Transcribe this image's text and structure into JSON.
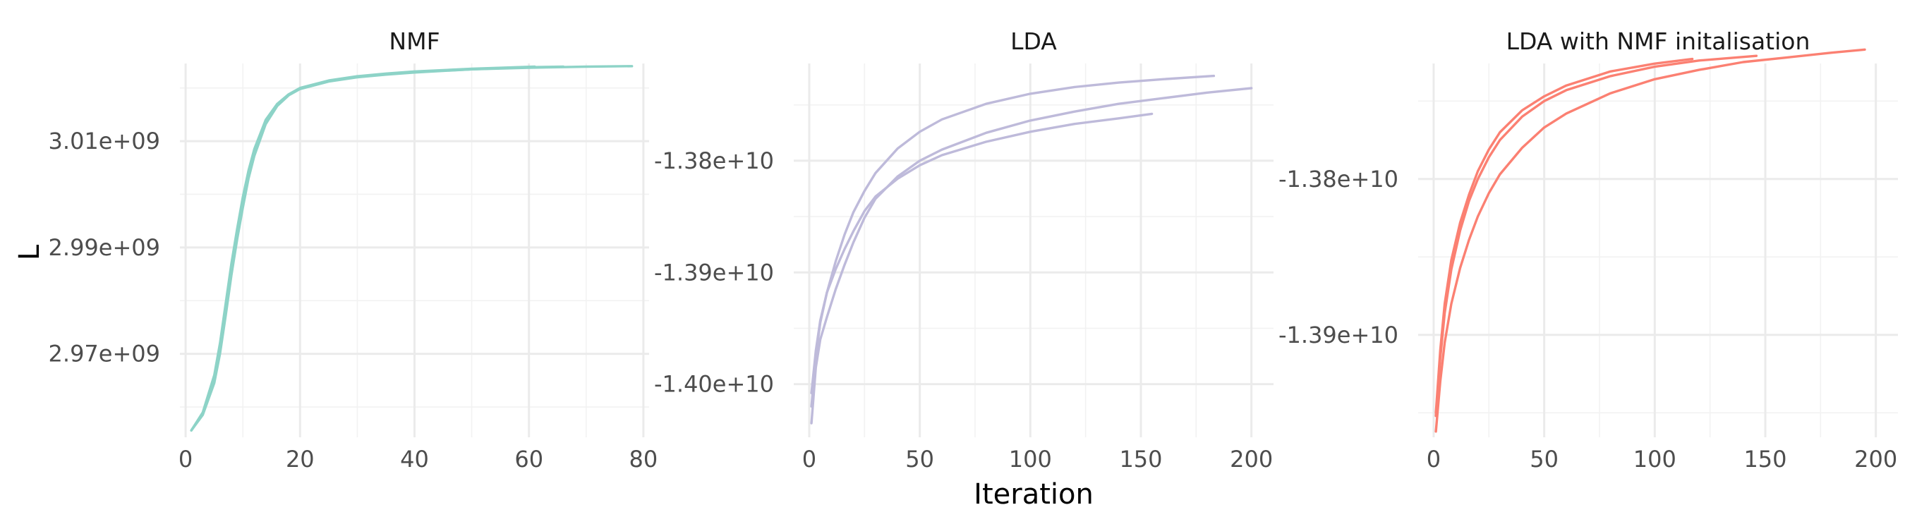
{
  "chart_data": [
    {
      "type": "line",
      "title": "NMF",
      "xlabel": "",
      "ylabel": "L",
      "xlim": [
        -1,
        81
      ],
      "ylim": [
        2954300000.0,
        3024600000.0
      ],
      "x_ticks": [
        0,
        20,
        40,
        60,
        80
      ],
      "x_tick_labels": [
        "0",
        "20",
        "40",
        "60",
        "80"
      ],
      "y_ticks": [
        2970000000.0,
        2990000000.0,
        3010000000.0
      ],
      "y_tick_labels": [
        "2.97e+09",
        "2.99e+09",
        "3.01e+09"
      ],
      "grid": true,
      "color": "#8dd3c7",
      "series": [
        {
          "x": [
            1,
            3,
            5,
            6,
            7,
            8,
            9,
            10,
            11,
            12,
            14,
            16,
            18,
            20,
            25,
            30,
            35,
            40,
            50,
            61
          ],
          "y": [
            2955600000.0,
            2959000000.0,
            2966000000.0,
            2972000000.0,
            2979500000.0,
            2987000000.0,
            2993500000.0,
            2999500000.0,
            3004500000.0,
            3008500000.0,
            3014000000.0,
            3017000000.0,
            3018800000.0,
            3020000000.0,
            3021400000.0,
            3022200000.0,
            3022700000.0,
            3023100000.0,
            3023600000.0,
            3024000000.0
          ]
        },
        {
          "x": [
            1,
            3,
            5,
            6,
            7,
            8,
            9,
            10,
            11,
            12,
            14,
            16,
            18,
            20,
            25,
            30,
            35,
            40,
            50,
            60,
            66
          ],
          "y": [
            2955600000.0,
            2958500000.0,
            2964500000.0,
            2970000000.0,
            2977200000.0,
            2984800000.0,
            2991500000.0,
            2997500000.0,
            3003000000.0,
            3007200000.0,
            3013200000.0,
            3016600000.0,
            3018600000.0,
            3019800000.0,
            3021200000.0,
            3022000000.0,
            3022500000.0,
            3022900000.0,
            3023500000.0,
            3023900000.0,
            3024000000.0
          ]
        },
        {
          "x": [
            1,
            3,
            5,
            6,
            7,
            8,
            9,
            10,
            11,
            12,
            14,
            16,
            18,
            20,
            25,
            30,
            35,
            40,
            50,
            60,
            70,
            78
          ],
          "y": [
            2955600000.0,
            2958800000.0,
            2965200000.0,
            2971000000.0,
            2978500000.0,
            2986000000.0,
            2992500000.0,
            2998500000.0,
            3003700000.0,
            3007800000.0,
            3013600000.0,
            3016800000.0,
            3018700000.0,
            3019900000.0,
            3021300000.0,
            3022100000.0,
            3022600000.0,
            3023000000.0,
            3023500000.0,
            3023800000.0,
            3024000000.0,
            3024100000.0
          ]
        }
      ]
    },
    {
      "type": "line",
      "title": "LDA",
      "xlabel": "Iteration",
      "ylabel": "",
      "xlim": [
        -7,
        210
      ],
      "ylim": [
        -14047600000.0,
        -13712900000.0
      ],
      "x_ticks": [
        0,
        50,
        100,
        150,
        200
      ],
      "x_tick_labels": [
        "0",
        "50",
        "100",
        "150",
        "200"
      ],
      "y_ticks": [
        -14000000000.0,
        -13900000000.0,
        -13800000000.0
      ],
      "y_tick_labels": [
        "-1.40e+10",
        "-1.39e+10",
        "-1.38e+10"
      ],
      "grid": true,
      "color": "#bebada",
      "series": [
        {
          "x": [
            1,
            3,
            5,
            8,
            12,
            16,
            20,
            25,
            30,
            40,
            50,
            60,
            80,
            100,
            120,
            140,
            160,
            183
          ],
          "y": [
            -14020000000.0,
            -13975000000.0,
            -13945000000.0,
            -13918000000.0,
            -13890000000.0,
            -13866000000.0,
            -13846000000.0,
            -13827000000.0,
            -13811000000.0,
            -13789000000.0,
            -13774000000.0,
            -13763000000.0,
            -13749000000.0,
            -13740000000.0,
            -13734000000.0,
            -13730000000.0,
            -13727000000.0,
            -13724000000.0
          ]
        },
        {
          "x": [
            1,
            3,
            5,
            8,
            12,
            16,
            20,
            25,
            30,
            40,
            50,
            60,
            80,
            100,
            120,
            140,
            160,
            180,
            200
          ],
          "y": [
            -14035000000.0,
            -13985000000.0,
            -13960000000.0,
            -13940000000.0,
            -13915000000.0,
            -13893000000.0,
            -13873000000.0,
            -13851000000.0,
            -13834000000.0,
            -13814000000.0,
            -13800000000.0,
            -13790000000.0,
            -13775000000.0,
            -13764000000.0,
            -13756000000.0,
            -13749000000.0,
            -13744000000.0,
            -13739000000.0,
            -13735000000.0
          ]
        },
        {
          "x": [
            1,
            3,
            5,
            8,
            12,
            16,
            20,
            25,
            30,
            40,
            50,
            60,
            80,
            100,
            120,
            140,
            155
          ],
          "y": [
            -14008000000.0,
            -13970000000.0,
            -13943000000.0,
            -13918000000.0,
            -13897000000.0,
            -13879000000.0,
            -13863000000.0,
            -13845000000.0,
            -13832000000.0,
            -13816000000.0,
            -13804000000.0,
            -13795000000.0,
            -13783000000.0,
            -13774000000.0,
            -13767000000.0,
            -13762000000.0,
            -13758000000.0
          ]
        }
      ]
    },
    {
      "type": "line",
      "title": "LDA with NMF initalisation",
      "xlabel": "",
      "ylabel": "",
      "xlim": [
        -7,
        210
      ],
      "ylim": [
        -13965700000.0,
        -13725900000.0
      ],
      "x_ticks": [
        0,
        50,
        100,
        150,
        200
      ],
      "x_tick_labels": [
        "0",
        "50",
        "100",
        "150",
        "200"
      ],
      "y_ticks": [
        -13900000000.0,
        -13800000000.0
      ],
      "y_tick_labels": [
        "-1.39e+10",
        "-1.38e+10"
      ],
      "grid": true,
      "color": "#fb8072",
      "series": [
        {
          "x": [
            1,
            3,
            5,
            8,
            12,
            16,
            20,
            25,
            30,
            40,
            50,
            60,
            80,
            100,
            117
          ],
          "y": [
            -13950000000.0,
            -13910000000.0,
            -13880000000.0,
            -13852000000.0,
            -13828000000.0,
            -13810000000.0,
            -13795000000.0,
            -13781000000.0,
            -13770000000.0,
            -13756000000.0,
            -13747000000.0,
            -13740000000.0,
            -13731000000.0,
            -13726000000.0,
            -13723000000.0
          ]
        },
        {
          "x": [
            1,
            3,
            5,
            8,
            12,
            16,
            20,
            25,
            30,
            40,
            50,
            60,
            80,
            100,
            120,
            146
          ],
          "y": [
            -13952000000.0,
            -13915000000.0,
            -13886000000.0,
            -13858000000.0,
            -13833000000.0,
            -13814000000.0,
            -13800000000.0,
            -13786000000.0,
            -13775000000.0,
            -13760000000.0,
            -13750000000.0,
            -13743000000.0,
            -13734000000.0,
            -13728000000.0,
            -13724000000.0,
            -13721000000.0
          ]
        },
        {
          "x": [
            1,
            3,
            5,
            8,
            12,
            16,
            20,
            25,
            30,
            40,
            50,
            60,
            80,
            100,
            120,
            140,
            160,
            180,
            195
          ],
          "y": [
            -13962000000.0,
            -13930000000.0,
            -13905000000.0,
            -13880000000.0,
            -13857000000.0,
            -13839000000.0,
            -13824000000.0,
            -13809000000.0,
            -13797000000.0,
            -13780000000.0,
            -13767000000.0,
            -13758000000.0,
            -13745000000.0,
            -13736000000.0,
            -13730000000.0,
            -13725000000.0,
            -13722000000.0,
            -13719000000.0,
            -13717000000.0
          ]
        }
      ]
    }
  ]
}
